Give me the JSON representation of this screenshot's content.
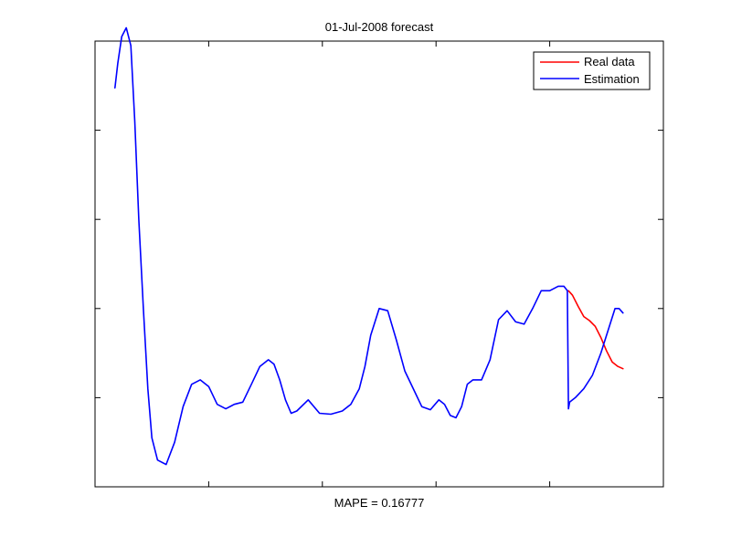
{
  "chart_data": {
    "type": "line",
    "title": "01-Jul-2008 forecast",
    "xlabel": "MAPE = 0.16777",
    "ylabel": "",
    "xlim": [
      0,
      100
    ],
    "ylim": [
      0,
      100
    ],
    "grid": false,
    "x_tick_labels_shown": false,
    "y_tick_labels_shown": false,
    "legend_position": "top-right",
    "x_ticks": [
      20,
      40,
      60,
      80
    ],
    "y_ticks": [
      20,
      40,
      60,
      80
    ],
    "series": [
      {
        "name": "Real data",
        "color": "#ff0000",
        "x": [
          83.3,
          84.0,
          85.0,
          86.0,
          87.0,
          88.0,
          89.0,
          90.0,
          91.0,
          92.0,
          92.9
        ],
        "y": [
          44.0,
          43.0,
          40.5,
          38.2,
          37.3,
          36.0,
          33.5,
          30.5,
          28.0,
          27.0,
          26.5
        ]
      },
      {
        "name": "Estimation",
        "color": "#0000ff",
        "x": [
          3.5,
          4.0,
          4.7,
          5.5,
          6.3,
          7.0,
          7.7,
          8.5,
          9.3,
          10.0,
          11.0,
          12.5,
          14.0,
          15.5,
          17.0,
          18.5,
          20.0,
          21.5,
          23.0,
          24.5,
          26.0,
          27.5,
          29.0,
          30.5,
          31.5,
          32.5,
          33.5,
          34.5,
          35.5,
          37.5,
          39.5,
          41.5,
          43.5,
          45.0,
          46.5,
          47.5,
          48.5,
          50.0,
          51.5,
          53.0,
          54.5,
          56.0,
          57.5,
          59.0,
          60.5,
          61.5,
          62.5,
          63.5,
          64.5,
          65.5,
          66.5,
          68.0,
          69.5,
          71.0,
          72.5,
          74.0,
          75.5,
          77.0,
          78.5,
          80.0,
          81.5,
          82.5,
          83.1,
          83.3,
          83.5,
          84.5,
          86.0,
          87.5,
          89.0,
          90.5,
          91.5,
          92.2,
          92.9
        ],
        "y": [
          89.5,
          95.0,
          101.0,
          103.0,
          99.0,
          82.0,
          60.0,
          40.0,
          22.0,
          11.0,
          6.0,
          5.0,
          10.0,
          18.0,
          23.0,
          24.0,
          22.5,
          18.5,
          17.5,
          18.5,
          19.0,
          23.0,
          27.0,
          28.5,
          27.5,
          24.0,
          19.5,
          16.5,
          17.0,
          19.5,
          16.5,
          16.3,
          17.0,
          18.5,
          22.0,
          27.0,
          34.0,
          40.0,
          39.5,
          33.0,
          26.0,
          22.0,
          18.0,
          17.3,
          19.5,
          18.5,
          16.0,
          15.5,
          18.0,
          23.0,
          24.0,
          24.0,
          28.5,
          37.5,
          39.5,
          37.0,
          36.5,
          40.0,
          44.0,
          44.0,
          45.0,
          45.0,
          44.0,
          17.5,
          19.0,
          20.0,
          22.0,
          25.0,
          30.0,
          36.0,
          40.0,
          40.0,
          39.0
        ]
      }
    ]
  }
}
